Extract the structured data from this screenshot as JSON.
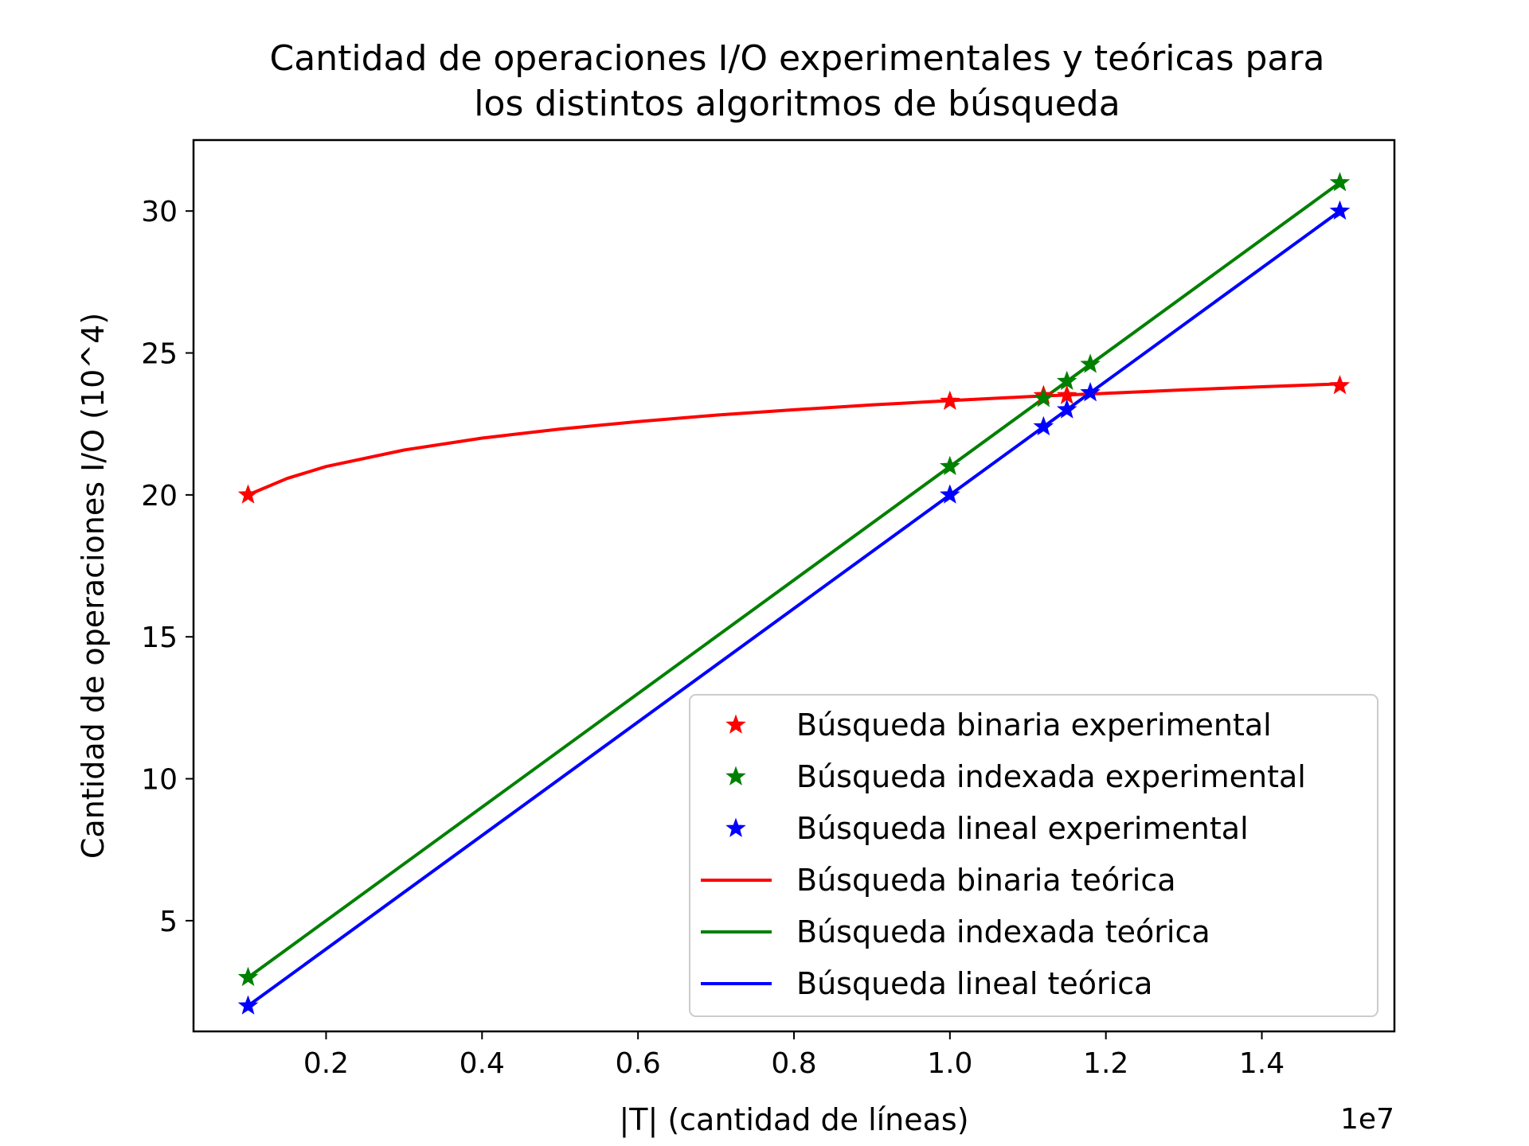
{
  "chart_data": {
    "type": "line",
    "title_lines": [
      "Cantidad de operaciones I/O experimentales y teóricas para",
      "los distintos algoritmos de búsqueda"
    ],
    "xlabel": "|T| (cantidad de líneas)",
    "ylabel": "Cantidad de operaciones I/O (10^4)",
    "x_offset_label": "1e7",
    "xlim": [
      0.03,
      1.57
    ],
    "ylim": [
      1.1,
      32.5
    ],
    "x_ticks": [
      {
        "value": 0.2,
        "label": "0.2"
      },
      {
        "value": 0.4,
        "label": "0.4"
      },
      {
        "value": 0.6,
        "label": "0.6"
      },
      {
        "value": 0.8,
        "label": "0.8"
      },
      {
        "value": 1.0,
        "label": "1.0"
      },
      {
        "value": 1.2,
        "label": "1.2"
      },
      {
        "value": 1.4,
        "label": "1.4"
      }
    ],
    "y_ticks": [
      {
        "value": 5,
        "label": "5"
      },
      {
        "value": 10,
        "label": "10"
      },
      {
        "value": 15,
        "label": "15"
      },
      {
        "value": 20,
        "label": "20"
      },
      {
        "value": 25,
        "label": "25"
      },
      {
        "value": 30,
        "label": "30"
      }
    ],
    "legend_position": "lower right",
    "series": [
      {
        "name": "Búsqueda binaria experimental",
        "kind": "marker",
        "color": "#ff0000",
        "x": [
          0.1,
          1.0,
          1.12,
          1.15,
          1.5
        ],
        "y": [
          20.0,
          23.3,
          23.5,
          23.5,
          23.85
        ]
      },
      {
        "name": "Búsqueda indexada experimental",
        "kind": "marker",
        "color": "#008000",
        "x": [
          0.1,
          1.0,
          1.12,
          1.15,
          1.18,
          1.5
        ],
        "y": [
          3.0,
          21.0,
          23.4,
          24.0,
          24.6,
          31.0
        ]
      },
      {
        "name": "Búsqueda lineal experimental",
        "kind": "marker",
        "color": "#0000ff",
        "x": [
          0.1,
          1.0,
          1.12,
          1.15,
          1.18,
          1.5
        ],
        "y": [
          2.0,
          20.0,
          22.4,
          23.0,
          23.6,
          30.0
        ]
      },
      {
        "name": "Búsqueda binaria teórica",
        "kind": "line",
        "color": "#ff0000",
        "x": [
          0.1,
          0.15,
          0.2,
          0.3,
          0.4,
          0.5,
          0.6,
          0.7,
          0.8,
          0.9,
          1.0,
          1.1,
          1.2,
          1.3,
          1.4,
          1.5
        ],
        "y": [
          20.0,
          20.58,
          21.0,
          21.58,
          22.0,
          22.32,
          22.58,
          22.81,
          23.0,
          23.17,
          23.32,
          23.46,
          23.58,
          23.7,
          23.81,
          23.91
        ]
      },
      {
        "name": "Búsqueda indexada teórica",
        "kind": "line",
        "color": "#008000",
        "x": [
          0.1,
          1.5
        ],
        "y": [
          3.0,
          31.0
        ]
      },
      {
        "name": "Búsqueda lineal teórica",
        "kind": "line",
        "color": "#0000ff",
        "x": [
          0.1,
          1.5
        ],
        "y": [
          2.0,
          30.0
        ]
      }
    ]
  }
}
